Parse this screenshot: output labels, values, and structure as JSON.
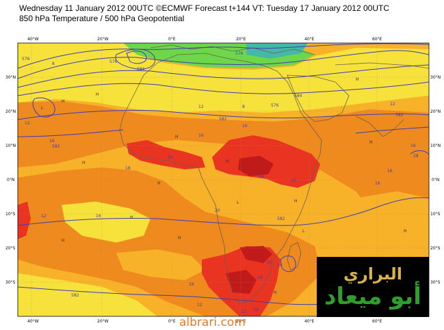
{
  "header": {
    "line1": "Wednesday 11 January 2012 00UTC ©ECMWF Forecast t+144 VT: Tuesday 17 January 2012 00UTC",
    "line2": "850 hPa Temperature / 500 hPa Geopotential"
  },
  "axes": {
    "top_lon": [
      "40°W",
      "20°W",
      "0°E",
      "20°E",
      "40°E",
      "60°E"
    ],
    "bottom_lon": [
      "40°W",
      "20°W",
      "0°E",
      "20°E",
      "40°E",
      "60°E"
    ],
    "left_lat": [
      "30°N",
      "20°N",
      "10°N",
      "0°N",
      "10°S",
      "20°S",
      "30°S"
    ],
    "right_lat": [
      "30°N",
      "20°N",
      "10°N",
      "0°N",
      "10°S",
      "20°S",
      "30°S"
    ]
  },
  "contour_labels": [
    "576",
    "8",
    "576",
    "584",
    "12",
    "582",
    "16",
    "18",
    "582",
    "16",
    "12",
    "16",
    "18",
    "20",
    "24",
    "20",
    "582",
    "16",
    "20",
    "16",
    "12",
    "582",
    "12",
    "16",
    "12",
    "8",
    "576",
    "584",
    "576",
    "16",
    "16",
    "16",
    "18",
    "16",
    "582",
    "12",
    "18"
  ],
  "pressure_markers": [
    "H",
    "L"
  ],
  "colors": {
    "cold_green": "#6dd64a",
    "cool_yellow": "#f6e23a",
    "mild_orange": "#f7b22a",
    "warm_orange": "#ef8a1e",
    "hot_red": "#ea3422",
    "very_hot": "#c11a1a",
    "contour": "#3c3cb8",
    "coast": "#6b5f4b"
  },
  "watermark": {
    "line1": "البراري",
    "line2": "أبو ميعاد"
  },
  "site": "albrari.com"
}
